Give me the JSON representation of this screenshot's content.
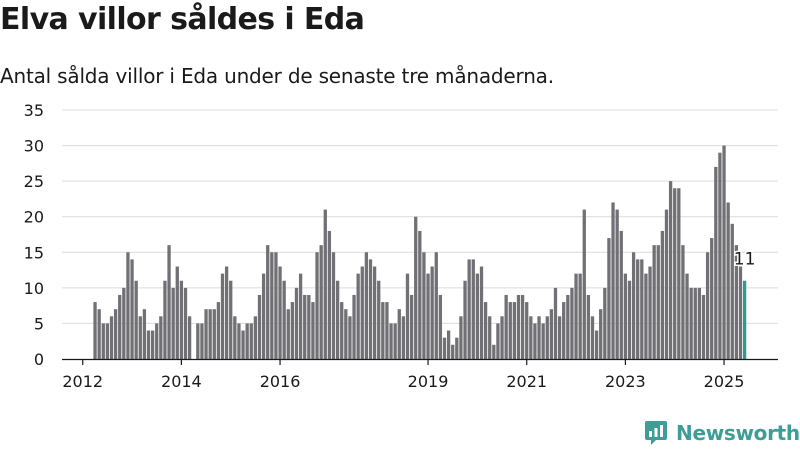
{
  "header": {
    "title": "Elva villor såldes i Eda",
    "subtitle": "Antal sålda villor i Eda under de senaste tre månaderna."
  },
  "brand": {
    "name": "Newsworthy"
  },
  "colors": {
    "bar": "#707075",
    "highlight": "#2a9d92",
    "grid": "#dcdcdc",
    "axis": "#1a1a1a",
    "brand": "#3e9d96"
  },
  "chart_data": {
    "type": "bar",
    "title": "",
    "xlabel": "",
    "ylabel": "",
    "ylim": [
      0,
      35
    ],
    "yticks": [
      0,
      5,
      10,
      15,
      20,
      25,
      30,
      35
    ],
    "xticks": [
      "2012",
      "2014",
      "2016",
      "2019",
      "2021",
      "2023",
      "2025"
    ],
    "x_start": "2012-04",
    "grid": true,
    "values": [
      8,
      7,
      5,
      5,
      6,
      7,
      9,
      10,
      15,
      14,
      11,
      6,
      7,
      4,
      4,
      5,
      6,
      11,
      16,
      10,
      13,
      11,
      10,
      6,
      0,
      5,
      5,
      7,
      7,
      7,
      8,
      12,
      13,
      11,
      6,
      5,
      4,
      5,
      5,
      6,
      9,
      12,
      16,
      15,
      15,
      13,
      11,
      7,
      8,
      10,
      12,
      9,
      9,
      8,
      15,
      16,
      21,
      18,
      15,
      11,
      8,
      7,
      6,
      9,
      12,
      13,
      15,
      14,
      13,
      11,
      8,
      8,
      5,
      5,
      7,
      6,
      12,
      9,
      20,
      18,
      15,
      12,
      13,
      15,
      9,
      3,
      4,
      2,
      3,
      6,
      11,
      14,
      14,
      12,
      13,
      8,
      6,
      2,
      5,
      6,
      9,
      8,
      8,
      9,
      9,
      8,
      6,
      5,
      6,
      5,
      6,
      7,
      10,
      6,
      8,
      9,
      10,
      12,
      12,
      21,
      9,
      6,
      4,
      7,
      10,
      17,
      22,
      21,
      18,
      12,
      11,
      15,
      14,
      14,
      12,
      13,
      16,
      16,
      18,
      21,
      25,
      24,
      24,
      16,
      12,
      10,
      10,
      10,
      9,
      15,
      17,
      27,
      29,
      30,
      22,
      19,
      16,
      13,
      11
    ],
    "highlight_last": true,
    "last_label": "11"
  }
}
